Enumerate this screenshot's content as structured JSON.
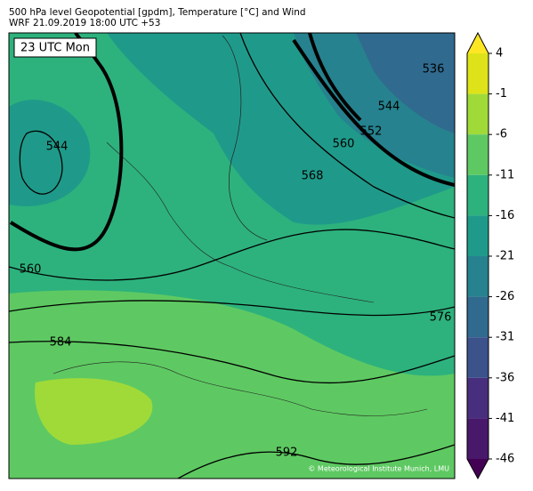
{
  "header": {
    "title": "500 hPa level Geopotential [gpdm], Temperature [°C] and Wind",
    "subtitle": "WRF 21.09.2019 18:00 UTC +53"
  },
  "map": {
    "time_label": "23 UTC Mon",
    "credit": "© Meteorological Institute Munich, LMU",
    "contour_labels": [
      544,
      536,
      544,
      552,
      560,
      568,
      560,
      584,
      576,
      592
    ]
  },
  "colorbar": {
    "lim": [
      -46,
      4
    ],
    "ticks": [
      4,
      -1,
      -6,
      -11,
      -16,
      -21,
      -26,
      -31,
      -36,
      -41,
      -46
    ],
    "colors": [
      "#dde318",
      "#a0da39",
      "#5ec962",
      "#2db27d",
      "#1f9a8a",
      "#26828e",
      "#306a8e",
      "#3b528b",
      "#472f7d",
      "#48186a"
    ],
    "over_color": "#fde725",
    "under_color": "#440154"
  }
}
